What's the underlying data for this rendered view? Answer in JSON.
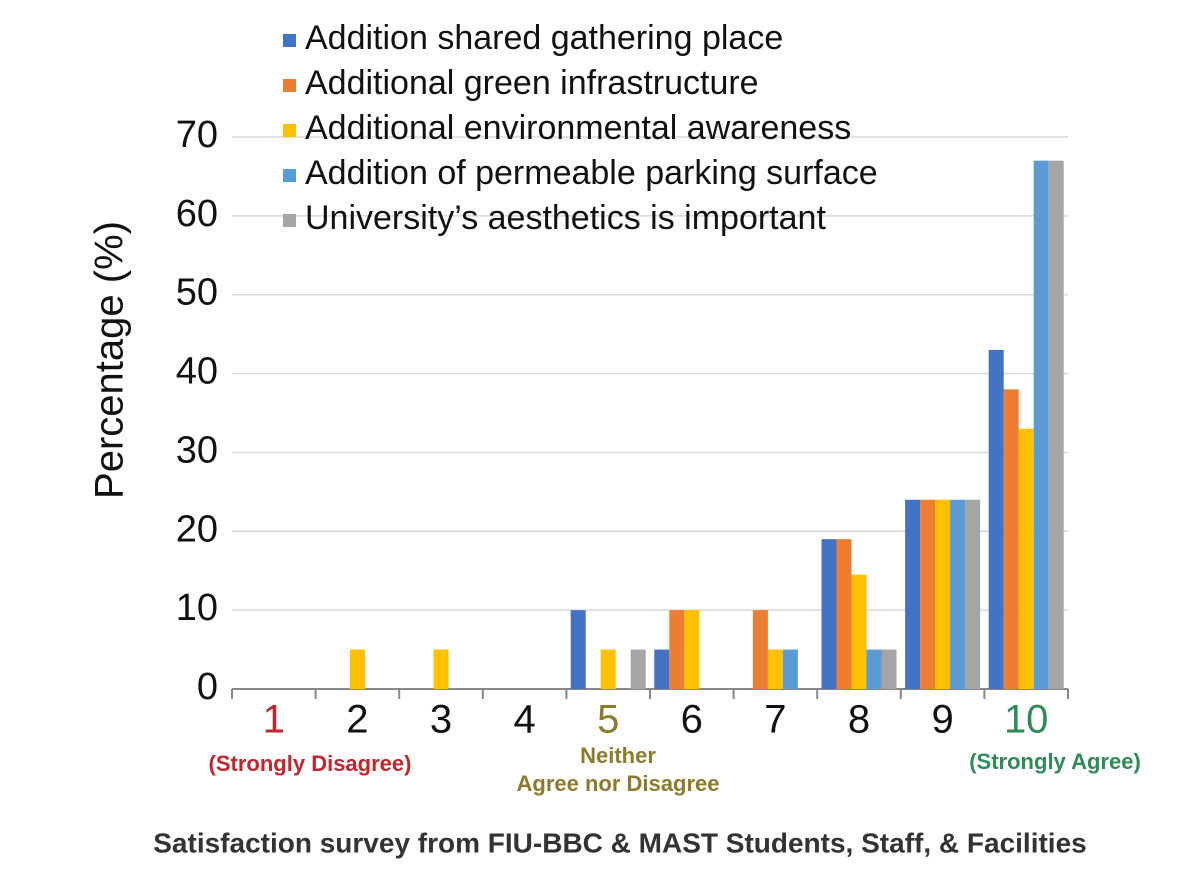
{
  "chart_data": {
    "type": "bar",
    "title": "Satisfaction survey from FIU-BBC & MAST Students, Staff, & Facilities",
    "y_label": "Percentage (%)",
    "categories": [
      "1",
      "2",
      "3",
      "4",
      "5",
      "6",
      "7",
      "8",
      "9",
      "10"
    ],
    "category_colors": [
      "#c0262d",
      "#111111",
      "#111111",
      "#111111",
      "#8c7a2e",
      "#111111",
      "#111111",
      "#111111",
      "#111111",
      "#2e8b57"
    ],
    "series": [
      {
        "name": "Addition shared gathering place",
        "color": "#4472c4",
        "values": [
          0,
          0,
          0,
          0,
          10,
          5,
          0,
          19,
          24,
          43
        ]
      },
      {
        "name": "Additional green infrastructure",
        "color": "#ed7d31",
        "values": [
          0,
          0,
          0,
          0,
          0,
          10,
          10,
          19,
          24,
          38
        ]
      },
      {
        "name": "Additional environmental awareness",
        "color": "#ffc000",
        "values": [
          0,
          5,
          5,
          0,
          5,
          10,
          5,
          14.5,
          24,
          33
        ]
      },
      {
        "name": "Addition of permeable parking surface",
        "color": "#5b9bd5",
        "values": [
          0,
          0,
          0,
          0,
          0,
          0,
          5,
          5,
          24,
          67
        ]
      },
      {
        "name": "University’s aesthetics is important",
        "color": "#a5a5a5",
        "values": [
          0,
          0,
          0,
          0,
          5,
          0,
          0,
          5,
          24,
          67
        ]
      }
    ],
    "annotations": [
      {
        "lines": [
          "(Strongly Disagree)"
        ],
        "color": "#c0262d"
      },
      {
        "lines": [
          "Neither",
          "Agree nor Disagree"
        ],
        "color": "#8c7a2e"
      },
      {
        "lines": [
          "(Strongly Agree)"
        ],
        "color": "#2e8b57"
      }
    ],
    "ylim": [
      0,
      70
    ],
    "yticks": [
      0,
      10,
      20,
      30,
      40,
      50,
      60,
      70
    ],
    "grid": true
  }
}
